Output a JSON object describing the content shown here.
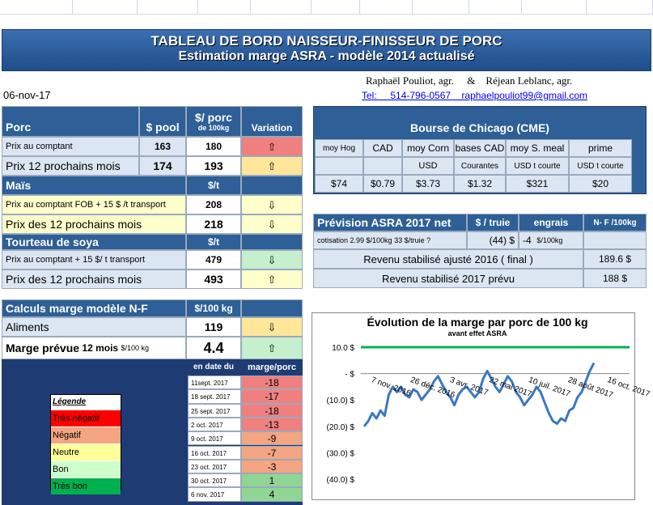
{
  "title": {
    "line1": "TABLEAU DE BORD NAISSEUR-FINISSEUR DE PORC",
    "line2": "Estimation marge ASRA - modèle 2014 actualisé"
  },
  "date": "06-nov-17",
  "authors": "Raphaël Pouliot, agr.     &    Réjean Leblanc, agr.",
  "contact": "Tel:     514-796-0567    raphaelpouliot99@gmail.com",
  "porc": {
    "header": {
      "label": "Porc",
      "pool": "$ pool",
      "perporc": "$/ porc",
      "perporc_sub": "de 100kg",
      "variation": "Variation"
    },
    "rows": [
      {
        "label": "Prix au comptant",
        "pool": "163",
        "value": "180",
        "arrow": "⇧"
      },
      {
        "label": "Prix 12 prochains mois",
        "pool": "174",
        "value": "193",
        "arrow": "⇧"
      }
    ]
  },
  "mais": {
    "header": {
      "label": "Maïs",
      "unit": "$/t"
    },
    "rows": [
      {
        "label": "Prix au comptant  FOB + 15 $ /t transport",
        "value": "208",
        "arrow": "⇩"
      },
      {
        "label": "Prix des 12 prochains mois",
        "value": "218",
        "arrow": "⇩"
      }
    ]
  },
  "soya": {
    "header": {
      "label": "Tourteau de soya",
      "unit": "$/t"
    },
    "rows": [
      {
        "label": "Prix au comptant  + 15 $/ t  transport",
        "value": "479",
        "arrow": "⇩"
      },
      {
        "label": "Prix des 12 prochains mois",
        "value": "493",
        "arrow": "⇧"
      }
    ]
  },
  "calc": {
    "header": {
      "label": "Calculs marge  modèle N-F",
      "unit": "$/100 kg"
    },
    "aliments": {
      "label": "Aliments",
      "value": "119",
      "arrow": "⇩"
    },
    "marge": {
      "label": "Marge prévue",
      "sub": "12 mois",
      "unit": "$/100 kg",
      "value": "4.4",
      "arrow": "⇧"
    }
  },
  "history": {
    "col_date": "en date du",
    "col_marge": "marge/porc",
    "rows": [
      {
        "date": "11sept. 2017",
        "value": "-18"
      },
      {
        "date": "18 sept. 2017",
        "value": "-17"
      },
      {
        "date": "25 sept. 2017",
        "value": "-18"
      },
      {
        "date": "2 oct. 2017",
        "value": "-13"
      },
      {
        "date": "9 oct. 2017",
        "value": "-9"
      },
      {
        "date": "16 oct. 2017",
        "value": "-7"
      },
      {
        "date": "23 oct. 2017",
        "value": "-3"
      },
      {
        "date": "30 oct. 2017",
        "value": "1"
      },
      {
        "date": "6 nov. 2017",
        "value": "4"
      }
    ]
  },
  "legend": {
    "title": "Légende",
    "items": [
      {
        "label": "Très négatif",
        "color": "#ff0000"
      },
      {
        "label": "Négatif",
        "color": "#f4a582"
      },
      {
        "label": "Neutre",
        "color": "#ffff99"
      },
      {
        "label": "Bon",
        "color": "#ccffcc"
      },
      {
        "label": "Très bon",
        "color": "#00b050"
      }
    ]
  },
  "cme": {
    "title": "Bourse de Chicago (CME)",
    "cols": [
      {
        "head": "moy Hog",
        "sub": "",
        "value": "$74"
      },
      {
        "head": "CAD",
        "sub": "",
        "value": "$0.79"
      },
      {
        "head": "moy Corn",
        "sub": "USD",
        "value": "$3.73"
      },
      {
        "head": "bases CAD",
        "sub": "Courantes",
        "value": "$1.32"
      },
      {
        "head": "moy S. meal",
        "sub": "USD t courte",
        "value": "$321"
      },
      {
        "head": "prime",
        "sub": "USD t courte",
        "value": "$20"
      }
    ]
  },
  "asra": {
    "title": "Prévision ASRA 2017 net",
    "col_truie": "$ / truie",
    "col_engrais": "engrais",
    "col_nf": "N- F /100kg",
    "cotisation": {
      "label": "cotisation 2.99 $/100kg  33 $/truie ?",
      "truie": "(44) $",
      "engrais": "-4",
      "engrais_unit": "$/100kg"
    },
    "rev2016": {
      "label": "Revenu stabilisé ajusté 2016 ( final )",
      "value": "189.6 $"
    },
    "rev2017": {
      "label": "Revenu stabilisé 2017 prévu",
      "value": "188 $"
    }
  },
  "chart_data": {
    "type": "line",
    "title": "Évolution de la marge par porc de 100 kg",
    "subtitle": "avant effet ASRA",
    "ylim": [
      -40,
      10
    ],
    "yticks": [
      {
        "v": 10,
        "label": "10.0  $"
      },
      {
        "v": 0,
        "label": "-  $"
      },
      {
        "v": -10,
        "label": "(10.0) $"
      },
      {
        "v": -20,
        "label": "(20.0) $"
      },
      {
        "v": -30,
        "label": "(30.0) $"
      },
      {
        "v": -40,
        "label": "(40.0) $"
      }
    ],
    "xlabels": [
      "7 nov. 2016",
      "26 déc. 2016",
      "3 avr. 2017",
      "22 mai 2017",
      "10 juil. 2017",
      "28 août 2017",
      "16 oct. 2017"
    ],
    "reference": {
      "value": 10,
      "color": "#00b050"
    },
    "series": [
      {
        "color": "#3a78c2",
        "values": [
          -20,
          -18,
          -15,
          -17,
          -14,
          -16,
          -8,
          -5,
          -7,
          -5,
          -8,
          -9,
          -6,
          -7,
          -10,
          -8,
          -6,
          -3,
          -1,
          -4,
          -7,
          -9,
          -12,
          -8,
          -6,
          -5,
          -7,
          -9,
          -7,
          -2,
          1,
          -2,
          -5,
          -7,
          -4,
          -1,
          -3,
          -7,
          -9,
          -12,
          -10,
          -8,
          -5,
          -7,
          -11,
          -15,
          -18,
          -19,
          -17,
          -18,
          -14,
          -13,
          -9,
          -7,
          -3,
          1,
          4
        ]
      }
    ]
  }
}
